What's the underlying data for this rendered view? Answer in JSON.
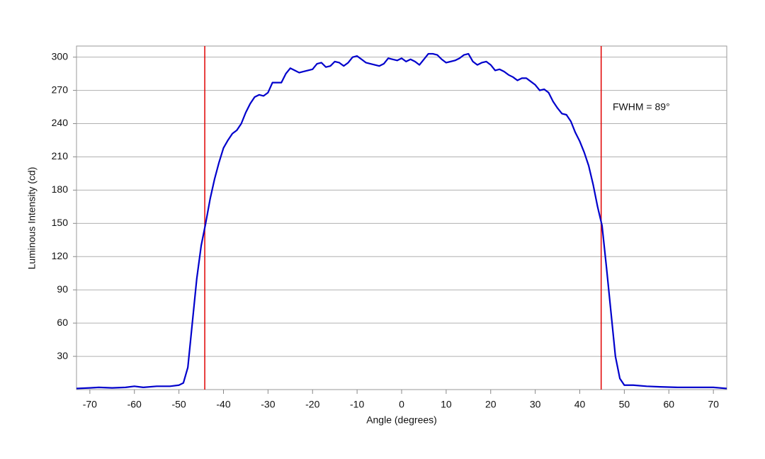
{
  "chart_data": {
    "type": "line",
    "x_label": "Angle (degrees)",
    "y_label": "Luminous Intensity (cd)",
    "annotation": "FWHM = 89°",
    "xlim": [
      -73,
      73
    ],
    "ylim": [
      0,
      310
    ],
    "xticks": [
      -70,
      -60,
      -50,
      -40,
      -30,
      -20,
      -10,
      0,
      10,
      20,
      30,
      40,
      50,
      60,
      70
    ],
    "yticks": [
      30,
      60,
      90,
      120,
      150,
      180,
      210,
      240,
      270,
      300
    ],
    "grid": true,
    "vlines": [
      -44.2,
      44.8
    ],
    "vline_color": "#e00000",
    "series": [
      {
        "color": "#0000cc",
        "x": [
          -73,
          -70,
          -68,
          -65,
          -62,
          -60,
          -58,
          -55,
          -52,
          -50,
          -49,
          -48,
          -47,
          -46,
          -45,
          -44,
          -43,
          -42,
          -41,
          -40,
          -39,
          -38,
          -37,
          -36,
          -35,
          -34,
          -33,
          -32,
          -31,
          -30,
          -29,
          -28,
          -27,
          -26,
          -25,
          -24,
          -23,
          -22,
          -20,
          -19,
          -18,
          -17,
          -16,
          -15,
          -14,
          -13,
          -12,
          -11,
          -10,
          -9,
          -8,
          -7,
          -5,
          -4,
          -3,
          -2,
          -1,
          0,
          1,
          2,
          3,
          4,
          5,
          6,
          7,
          8,
          9,
          10,
          12,
          13,
          14,
          15,
          16,
          17,
          18,
          19,
          20,
          21,
          22,
          23,
          24,
          25,
          26,
          27,
          28,
          29,
          30,
          31,
          32,
          33,
          34,
          35,
          36,
          37,
          38,
          39,
          40,
          41,
          42,
          43,
          44,
          45,
          46,
          47,
          48,
          49,
          50,
          52,
          55,
          58,
          62,
          65,
          68,
          70,
          73
        ],
        "values": [
          1,
          1.5,
          2,
          1.5,
          2,
          3,
          2,
          3,
          3,
          4,
          6,
          20,
          60,
          100,
          130,
          150,
          172,
          190,
          205,
          218,
          225,
          231,
          234,
          240,
          250,
          258,
          264,
          266,
          265,
          268,
          277,
          277,
          277,
          285,
          290,
          288,
          286,
          287,
          289,
          294,
          295,
          291,
          292,
          296,
          295,
          292,
          295,
          300,
          301,
          298,
          295,
          294,
          292,
          294,
          299,
          298,
          297,
          299,
          296,
          298,
          296,
          293,
          298,
          303,
          303,
          302,
          298,
          295,
          297,
          299,
          302,
          303,
          296,
          293,
          295,
          296,
          293,
          288,
          289,
          287,
          284,
          282,
          279,
          281,
          281,
          278,
          275,
          270,
          271,
          268,
          260,
          254,
          249,
          248,
          242,
          232,
          224,
          214,
          202,
          185,
          165,
          148,
          110,
          70,
          30,
          10,
          4,
          4,
          3,
          2.5,
          2,
          2,
          2,
          2,
          1
        ]
      }
    ]
  }
}
